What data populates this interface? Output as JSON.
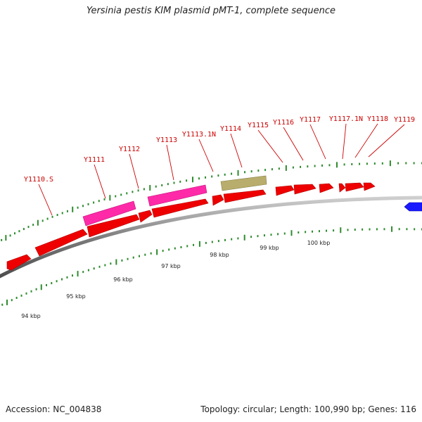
{
  "title": "Yersinia pestis KIM plasmid pMT-1, complete sequence",
  "footer": {
    "accession": "Accession: NC_004838",
    "summary": "Topology: circular; Length: 100,990 bp; Genes: 116"
  },
  "map": {
    "genes": [
      {
        "label": "Y1110.S"
      },
      {
        "label": "Y1111"
      },
      {
        "label": "Y1112"
      },
      {
        "label": "Y1113"
      },
      {
        "label": "Y1113.1N"
      },
      {
        "label": "Y1114"
      },
      {
        "label": "Y1115"
      },
      {
        "label": "Y1116"
      },
      {
        "label": "Y1117"
      },
      {
        "label": "Y1117.1N"
      },
      {
        "label": "Y1118"
      },
      {
        "label": "Y1119"
      }
    ],
    "scale_labels": [
      "94 kbp",
      "95 kbp",
      "96 kbp",
      "97 kbp",
      "98 kbp",
      "99 kbp",
      "100 kbp"
    ],
    "colors": {
      "cds": "#ff0000",
      "pink": "#ff1493",
      "olive": "#b5aa6a",
      "blue": "#0000ff",
      "backbone": "#888888",
      "tick": "#2e8b2e",
      "label": "#cc0000"
    }
  }
}
